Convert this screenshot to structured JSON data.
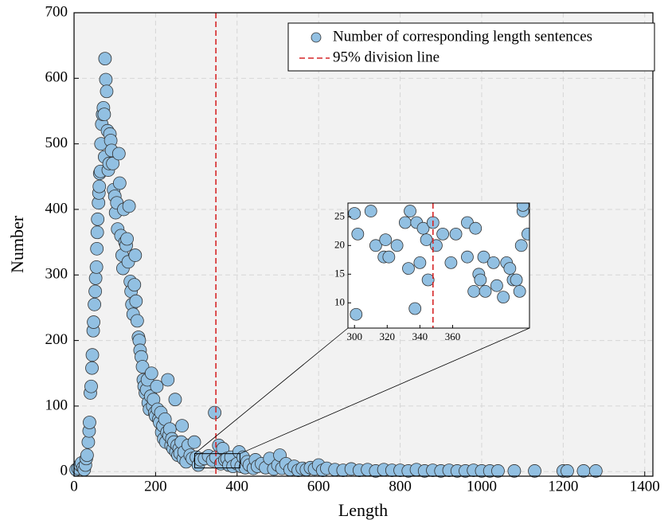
{
  "chart_data": {
    "type": "scatter",
    "xlabel": "Length",
    "ylabel": "Number",
    "xlim": [
      0,
      1420
    ],
    "ylim": [
      -7,
      700
    ],
    "xticks": [
      0,
      200,
      400,
      600,
      800,
      1000,
      1200,
      1400
    ],
    "yticks": [
      0,
      100,
      200,
      300,
      400,
      500,
      600,
      700
    ],
    "grid": true,
    "legend": "upper right",
    "series": [
      {
        "name": "Number of corresponding length sentences",
        "color": "#92c0e2",
        "x": [
          5,
          10,
          15,
          18,
          22,
          25,
          28,
          30,
          32,
          35,
          37,
          38,
          40,
          42,
          44,
          45,
          47,
          48,
          50,
          52,
          53,
          55,
          56,
          57,
          58,
          60,
          61,
          62,
          63,
          65,
          66,
          68,
          70,
          72,
          74,
          75,
          76,
          78,
          80,
          82,
          84,
          86,
          88,
          90,
          92,
          95,
          97,
          100,
          102,
          105,
          107,
          110,
          112,
          115,
          118,
          120,
          122,
          125,
          128,
          130,
          133,
          135,
          138,
          140,
          142,
          145,
          148,
          150,
          152,
          155,
          158,
          160,
          162,
          165,
          168,
          170,
          172,
          175,
          178,
          180,
          182,
          185,
          188,
          190,
          193,
          195,
          198,
          200,
          203,
          205,
          208,
          210,
          213,
          215,
          218,
          220,
          223,
          225,
          228,
          230,
          233,
          235,
          238,
          240,
          243,
          245,
          248,
          250,
          253,
          255,
          258,
          260,
          263,
          265,
          268,
          270,
          275,
          280,
          285,
          290,
          295,
          300,
          305,
          310,
          320,
          330,
          340,
          345,
          348,
          355,
          360,
          365,
          370,
          375,
          380,
          385,
          390,
          400,
          405,
          410,
          415,
          420,
          425,
          430,
          440,
          445,
          450,
          460,
          470,
          480,
          490,
          500,
          505,
          510,
          520,
          530,
          540,
          550,
          560,
          570,
          580,
          590,
          600,
          610,
          620,
          640,
          660,
          680,
          700,
          720,
          740,
          760,
          780,
          800,
          820,
          840,
          860,
          880,
          900,
          920,
          940,
          960,
          980,
          1000,
          1020,
          1040,
          1080,
          1130,
          1200,
          1210,
          1250,
          1280
        ],
        "values": [
          3,
          5,
          10,
          13,
          6,
          3,
          10,
          20,
          25,
          45,
          62,
          75,
          120,
          130,
          158,
          178,
          215,
          228,
          255,
          275,
          295,
          312,
          340,
          365,
          385,
          410,
          425,
          435,
          455,
          458,
          500,
          530,
          545,
          555,
          545,
          480,
          630,
          598,
          580,
          520,
          460,
          470,
          515,
          505,
          490,
          470,
          430,
          420,
          395,
          410,
          370,
          485,
          440,
          360,
          330,
          310,
          400,
          350,
          345,
          355,
          320,
          405,
          290,
          275,
          255,
          240,
          285,
          330,
          260,
          230,
          205,
          200,
          185,
          175,
          160,
          140,
          130,
          120,
          125,
          140,
          105,
          95,
          115,
          150,
          100,
          110,
          90,
          85,
          130,
          95,
          80,
          75,
          90,
          60,
          70,
          50,
          80,
          45,
          60,
          140,
          55,
          65,
          40,
          50,
          35,
          45,
          110,
          30,
          40,
          25,
          35,
          28,
          45,
          70,
          20,
          30,
          15,
          40,
          25,
          20,
          45,
          22,
          10,
          18,
          20,
          24,
          17,
          90,
          22,
          40,
          12,
          35,
          18,
          20,
          10,
          22,
          8,
          12,
          30,
          8,
          22,
          6,
          15,
          10,
          5,
          18,
          8,
          12,
          6,
          20,
          4,
          10,
          25,
          5,
          12,
          3,
          8,
          2,
          5,
          3,
          6,
          4,
          10,
          2,
          5,
          3,
          2,
          4,
          2,
          3,
          1,
          3,
          2,
          2,
          1,
          3,
          1,
          2,
          1,
          2,
          1,
          1,
          2,
          1,
          1,
          1,
          1,
          1,
          1,
          1,
          1,
          1
        ]
      }
    ],
    "division_line": {
      "name": "95% division line",
      "x": 348,
      "color": "#d62728"
    },
    "inset": {
      "xlim": [
        296,
        407
      ],
      "ylim": [
        5.6,
        27.4
      ],
      "xticks": [
        300,
        320,
        340,
        360
      ],
      "yticks": [
        10,
        15,
        20,
        25
      ],
      "x": [
        300,
        301,
        302,
        310,
        313,
        319,
        318,
        321,
        326,
        331,
        334,
        333,
        337,
        338,
        340,
        342,
        344,
        345,
        348,
        350,
        354,
        359,
        362,
        369,
        369,
        374,
        373,
        376,
        377,
        379,
        380,
        385,
        387,
        391,
        393,
        395,
        397,
        399,
        401,
        402,
        403,
        406,
        403
      ],
      "values": [
        25.6,
        8,
        22,
        26,
        20,
        21,
        18,
        18,
        20,
        24,
        26,
        16,
        9,
        24,
        17,
        23,
        21,
        14,
        24,
        20,
        22,
        17,
        22,
        18,
        24,
        23,
        12,
        15,
        14,
        18,
        12,
        17,
        13,
        11,
        17,
        16,
        14,
        14,
        12,
        20,
        26,
        22,
        27
      ]
    }
  }
}
